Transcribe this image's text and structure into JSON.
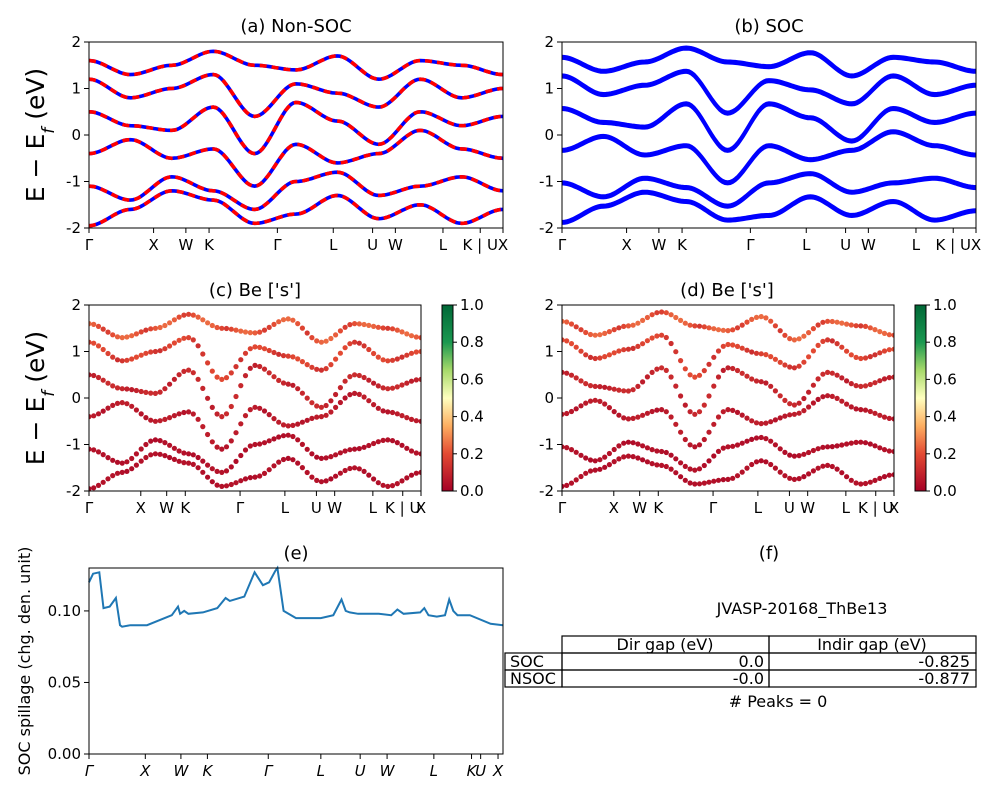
{
  "kpoint_labels": [
    "Γ",
    "X",
    "W",
    "K",
    "Γ",
    "L",
    "U",
    "W",
    "L",
    "K | U",
    "X"
  ],
  "kpoint_labels_e": [
    "Γ",
    "X",
    "W",
    "K",
    "Γ",
    "L",
    "U",
    "W",
    "L",
    "K",
    "U",
    "X"
  ],
  "colorbar_ticks": [
    "0.0",
    "0.2",
    "0.4",
    "0.6",
    "0.8",
    "1.0"
  ],
  "colors": {
    "nonsoc_red": "#ff0000",
    "nonsoc_blue": "#0000ff",
    "soc_blue": "#0000ff",
    "spillage_line": "#1f77b4"
  },
  "panels": {
    "a": {
      "title": "(a) Non-SOC",
      "ylabel": "E − E_f (eV)"
    },
    "b": {
      "title": "(b) SOC"
    },
    "c": {
      "title": "(c)  Be ['s']",
      "ylabel": "E − E_f (eV)"
    },
    "d": {
      "title": "(d) Be ['s']"
    },
    "e": {
      "title": "(e)",
      "ylabel": "SOC spillage (chg. den. unit)"
    },
    "f": {
      "title": "(f)",
      "material": "JVASP-20168_ThBe13",
      "table": {
        "col_headers": [
          "Dir gap (eV)",
          "Indir gap (eV)"
        ],
        "rows": [
          {
            "label": "SOC",
            "dir": "0.0",
            "indir": "-0.825"
          },
          {
            "label": "NSOC",
            "dir": "-0.0",
            "indir": "-0.877"
          }
        ]
      },
      "peaks": "# Peaks = 0"
    }
  },
  "chart_data": [
    {
      "type": "line",
      "title": "(a) Non-SOC",
      "ylabel": "E − E_f (eV)",
      "ylim": [
        -2,
        2
      ],
      "yticks": [
        -2,
        -1,
        0,
        1,
        2
      ],
      "x_ticks": [
        "Γ",
        "X",
        "W",
        "K",
        "Γ",
        "L",
        "U",
        "W",
        "L",
        "K | U",
        "X"
      ],
      "series": [
        {
          "values": [
            -1.95,
            -1.6,
            -1.2,
            -1.4,
            -1.9,
            -1.7,
            -1.3,
            -1.8,
            -1.5,
            -1.9,
            -1.6
          ]
        },
        {
          "values": [
            -1.1,
            -1.4,
            -0.9,
            -1.2,
            -1.6,
            -1.0,
            -0.8,
            -1.3,
            -1.1,
            -0.9,
            -1.2
          ]
        },
        {
          "values": [
            -0.4,
            -0.1,
            -0.5,
            -0.3,
            -1.1,
            -0.2,
            -0.6,
            -0.4,
            0.1,
            -0.3,
            -0.5
          ]
        },
        {
          "values": [
            0.5,
            0.2,
            0.1,
            0.6,
            -0.4,
            0.7,
            0.3,
            -0.2,
            0.5,
            0.2,
            0.4
          ]
        },
        {
          "values": [
            1.2,
            0.8,
            1.0,
            1.3,
            0.4,
            1.1,
            0.9,
            0.6,
            1.2,
            0.8,
            1.0
          ]
        },
        {
          "values": [
            1.6,
            1.3,
            1.5,
            1.8,
            1.5,
            1.4,
            1.7,
            1.2,
            1.6,
            1.5,
            1.3
          ]
        }
      ]
    },
    {
      "type": "line",
      "title": "(b) SOC",
      "ylim": [
        -2,
        2
      ],
      "yticks": [
        -2,
        -1,
        0,
        1,
        2
      ],
      "x_ticks": [
        "Γ",
        "X",
        "W",
        "K",
        "Γ",
        "L",
        "U",
        "W",
        "L",
        "K | U",
        "X"
      ],
      "series": [
        {
          "values": [
            -1.9,
            -1.55,
            -1.25,
            -1.45,
            -1.85,
            -1.75,
            -1.35,
            -1.75,
            -1.45,
            -1.85,
            -1.65
          ]
        },
        {
          "values": [
            -1.05,
            -1.35,
            -0.95,
            -1.15,
            -1.55,
            -1.05,
            -0.85,
            -1.25,
            -1.05,
            -0.95,
            -1.15
          ]
        },
        {
          "values": [
            -0.35,
            -0.05,
            -0.45,
            -0.25,
            -1.05,
            -0.25,
            -0.55,
            -0.35,
            0.05,
            -0.25,
            -0.45
          ]
        },
        {
          "values": [
            0.55,
            0.25,
            0.15,
            0.65,
            -0.35,
            0.65,
            0.35,
            -0.15,
            0.55,
            0.25,
            0.45
          ]
        },
        {
          "values": [
            1.25,
            0.85,
            1.05,
            1.35,
            0.45,
            1.15,
            0.95,
            0.65,
            1.25,
            0.85,
            1.05
          ]
        },
        {
          "values": [
            1.65,
            1.35,
            1.55,
            1.85,
            1.55,
            1.45,
            1.75,
            1.25,
            1.65,
            1.55,
            1.35
          ]
        }
      ]
    },
    {
      "type": "scatter",
      "title": "(c)  Be ['s']",
      "ylabel": "E − E_f (eV)",
      "ylim": [
        -2,
        2
      ],
      "yticks": [
        -2,
        -1,
        0,
        1,
        2
      ],
      "colorbar": {
        "range": [
          0.0,
          1.0
        ],
        "ticks": [
          0.0,
          0.2,
          0.4,
          0.6,
          0.8,
          1.0
        ]
      },
      "x_ticks": [
        "Γ",
        "X",
        "W",
        "K",
        "Γ",
        "L",
        "U",
        "W",
        "L",
        "K | U",
        "X"
      ],
      "series": [
        {
          "values": [
            -1.95,
            -1.6,
            -1.2,
            -1.4,
            -1.9,
            -1.7,
            -1.3,
            -1.8,
            -1.5,
            -1.9,
            -1.6
          ],
          "weight": 0.05
        },
        {
          "values": [
            -1.1,
            -1.4,
            -0.9,
            -1.2,
            -1.6,
            -1.0,
            -0.8,
            -1.3,
            -1.1,
            -0.9,
            -1.2
          ],
          "weight": 0.05
        },
        {
          "values": [
            -0.4,
            -0.1,
            -0.5,
            -0.3,
            -1.1,
            -0.2,
            -0.6,
            -0.4,
            0.1,
            -0.3,
            -0.5
          ],
          "weight": 0.08
        },
        {
          "values": [
            0.5,
            0.2,
            0.1,
            0.6,
            -0.4,
            0.7,
            0.3,
            -0.2,
            0.5,
            0.2,
            0.4
          ],
          "weight": 0.12
        },
        {
          "values": [
            1.2,
            0.8,
            1.0,
            1.3,
            0.4,
            1.1,
            0.9,
            0.6,
            1.2,
            0.8,
            1.0
          ],
          "weight": 0.2
        },
        {
          "values": [
            1.6,
            1.3,
            1.5,
            1.8,
            1.5,
            1.4,
            1.7,
            1.2,
            1.6,
            1.5,
            1.3
          ],
          "weight": 0.25
        }
      ]
    },
    {
      "type": "scatter",
      "title": "(d) Be ['s']",
      "ylim": [
        -2,
        2
      ],
      "yticks": [
        -2,
        -1,
        0,
        1,
        2
      ],
      "colorbar": {
        "range": [
          0.0,
          1.0
        ],
        "ticks": [
          0.0,
          0.2,
          0.4,
          0.6,
          0.8,
          1.0
        ]
      },
      "x_ticks": [
        "Γ",
        "X",
        "W",
        "K",
        "Γ",
        "L",
        "U",
        "W",
        "L",
        "K | U",
        "X"
      ],
      "series": [
        {
          "values": [
            -1.9,
            -1.55,
            -1.25,
            -1.45,
            -1.85,
            -1.75,
            -1.35,
            -1.75,
            -1.45,
            -1.85,
            -1.65
          ],
          "weight": 0.05
        },
        {
          "values": [
            -1.05,
            -1.35,
            -0.95,
            -1.15,
            -1.55,
            -1.05,
            -0.85,
            -1.25,
            -1.05,
            -0.95,
            -1.15
          ],
          "weight": 0.05
        },
        {
          "values": [
            -0.35,
            -0.05,
            -0.45,
            -0.25,
            -1.05,
            -0.25,
            -0.55,
            -0.35,
            0.05,
            -0.25,
            -0.45
          ],
          "weight": 0.08
        },
        {
          "values": [
            0.55,
            0.25,
            0.15,
            0.65,
            -0.35,
            0.65,
            0.35,
            -0.15,
            0.55,
            0.25,
            0.45
          ],
          "weight": 0.12
        },
        {
          "values": [
            1.25,
            0.85,
            1.05,
            1.35,
            0.45,
            1.15,
            0.95,
            0.65,
            1.25,
            0.85,
            1.05
          ],
          "weight": 0.2
        },
        {
          "values": [
            1.65,
            1.35,
            1.55,
            1.85,
            1.55,
            1.45,
            1.75,
            1.25,
            1.65,
            1.55,
            1.35
          ],
          "weight": 0.25
        }
      ]
    },
    {
      "type": "line",
      "title": "(e)",
      "ylabel": "SOC spillage (chg. den. unit)",
      "ylim": [
        0.0,
        0.13
      ],
      "yticks": [
        0.0,
        0.05,
        0.1
      ],
      "x_ticks": [
        "Γ",
        "X",
        "W",
        "K",
        "Γ",
        "L",
        "U",
        "W",
        "L",
        "K",
        "U",
        "X"
      ],
      "x": [
        0,
        0.01,
        0.025,
        0.035,
        0.05,
        0.065,
        0.075,
        0.08,
        0.1,
        0.14,
        0.2,
        0.215,
        0.22,
        0.23,
        0.24,
        0.275,
        0.31,
        0.33,
        0.34,
        0.375,
        0.4,
        0.42,
        0.435,
        0.45,
        0.455,
        0.47,
        0.5,
        0.56,
        0.59,
        0.61,
        0.62,
        0.63,
        0.65,
        0.7,
        0.73,
        0.745,
        0.76,
        0.8,
        0.81,
        0.82,
        0.84,
        0.86,
        0.87,
        0.88,
        0.89,
        0.92,
        0.97,
        1.0
      ],
      "values": [
        0.12,
        0.126,
        0.127,
        0.102,
        0.103,
        0.109,
        0.09,
        0.089,
        0.09,
        0.09,
        0.097,
        0.103,
        0.098,
        0.1,
        0.098,
        0.099,
        0.102,
        0.109,
        0.107,
        0.11,
        0.127,
        0.118,
        0.12,
        0.128,
        0.13,
        0.1,
        0.095,
        0.095,
        0.097,
        0.108,
        0.1,
        0.099,
        0.098,
        0.098,
        0.097,
        0.101,
        0.098,
        0.099,
        0.102,
        0.097,
        0.096,
        0.097,
        0.108,
        0.1,
        0.097,
        0.097,
        0.091,
        0.09
      ]
    }
  ]
}
